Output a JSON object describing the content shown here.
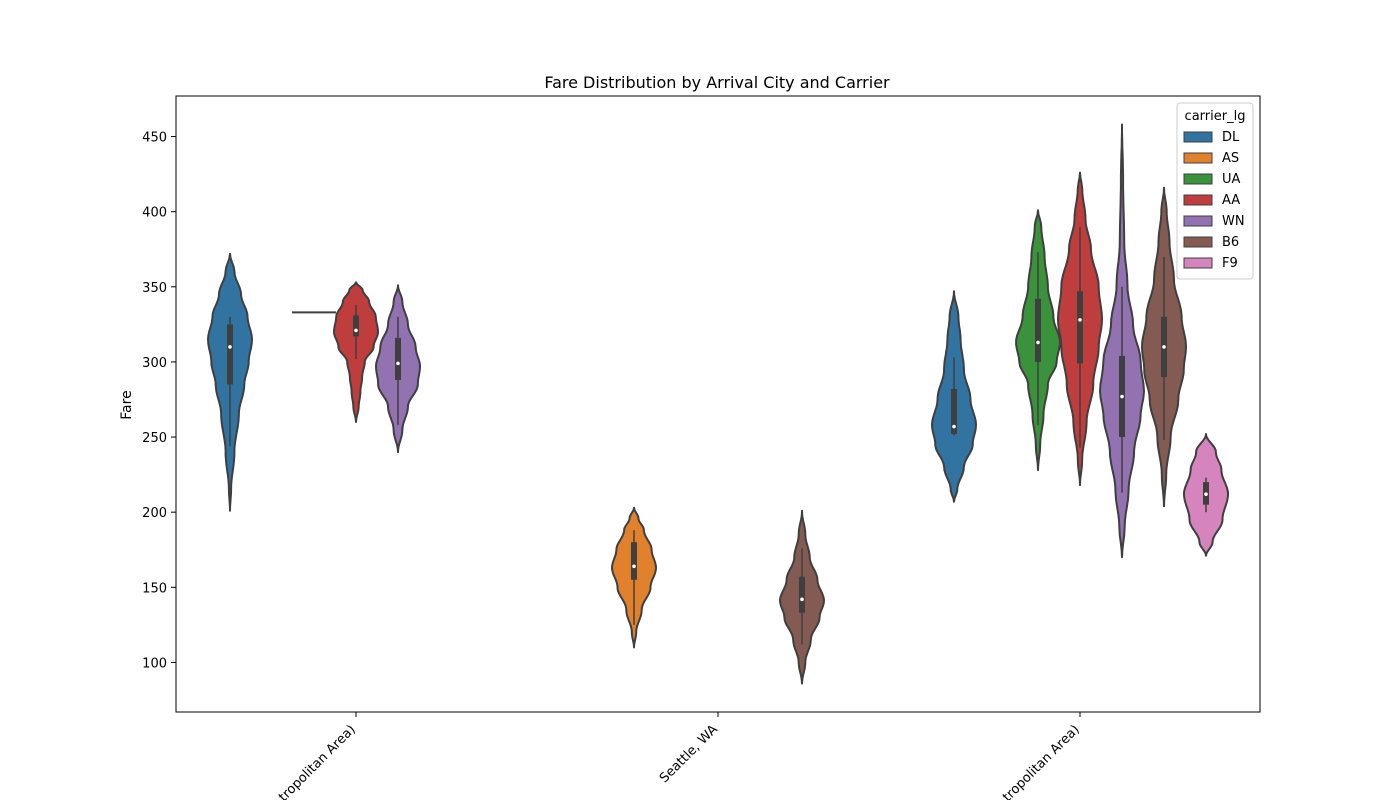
{
  "chart_data": {
    "type": "violin",
    "title": "Fare Distribution by Arrival City and Carrier",
    "xlabel": "",
    "ylabel": "Fare",
    "ylim": [
      67,
      477
    ],
    "yticks": [
      100,
      150,
      200,
      250,
      300,
      350,
      400,
      450
    ],
    "categories": [
      "tropolitan Area)",
      "Seattle, WA",
      "tropolitan Area)"
    ],
    "legend": {
      "title": "carrier_lg",
      "placement": "top-right",
      "entries": [
        "DL",
        "AS",
        "UA",
        "AA",
        "WN",
        "B6",
        "F9"
      ]
    },
    "colors": {
      "DL": "#3274a1",
      "AS": "#e1812c",
      "UA": "#3a923a",
      "AA": "#c03d3e",
      "WN": "#9372b2",
      "B6": "#845b53",
      "F9": "#d684bd"
    },
    "violins": [
      {
        "category": 0,
        "carrier": "DL",
        "min": 201,
        "max": 372,
        "q1": 285,
        "median": 310,
        "q3": 325,
        "whisker_low": 244,
        "whisker_high": 330,
        "profile": [
          [
            201,
            0.0
          ],
          [
            215,
            0.05
          ],
          [
            240,
            0.2
          ],
          [
            265,
            0.4
          ],
          [
            285,
            0.65
          ],
          [
            300,
            0.85
          ],
          [
            315,
            1.0
          ],
          [
            330,
            0.8
          ],
          [
            345,
            0.5
          ],
          [
            360,
            0.2
          ],
          [
            372,
            0.0
          ]
        ]
      },
      {
        "category": 0,
        "carrier": "UA",
        "min": 333,
        "max": 333,
        "median": 333,
        "degenerate": true
      },
      {
        "category": 0,
        "carrier": "AA",
        "min": 260,
        "max": 353,
        "q1": 317,
        "median": 321,
        "q3": 331,
        "whisker_low": 302,
        "whisker_high": 338,
        "profile": [
          [
            260,
            0.0
          ],
          [
            270,
            0.12
          ],
          [
            280,
            0.2
          ],
          [
            290,
            0.28
          ],
          [
            300,
            0.4
          ],
          [
            310,
            0.8
          ],
          [
            320,
            1.0
          ],
          [
            330,
            0.9
          ],
          [
            340,
            0.6
          ],
          [
            348,
            0.3
          ],
          [
            353,
            0.0
          ]
        ]
      },
      {
        "category": 0,
        "carrier": "WN",
        "min": 240,
        "max": 351,
        "q1": 288,
        "median": 299,
        "q3": 316,
        "whisker_low": 258,
        "whisker_high": 330,
        "profile": [
          [
            240,
            0.0
          ],
          [
            255,
            0.2
          ],
          [
            270,
            0.45
          ],
          [
            285,
            0.9
          ],
          [
            297,
            1.0
          ],
          [
            310,
            0.8
          ],
          [
            325,
            0.45
          ],
          [
            340,
            0.2
          ],
          [
            351,
            0.0
          ]
        ]
      },
      {
        "category": 1,
        "carrier": "AS",
        "min": 110,
        "max": 203,
        "q1": 155,
        "median": 164,
        "q3": 180,
        "whisker_low": 125,
        "whisker_high": 188,
        "profile": [
          [
            110,
            0.0
          ],
          [
            120,
            0.1
          ],
          [
            135,
            0.35
          ],
          [
            150,
            0.75
          ],
          [
            163,
            1.0
          ],
          [
            175,
            0.8
          ],
          [
            188,
            0.45
          ],
          [
            196,
            0.2
          ],
          [
            203,
            0.0
          ]
        ]
      },
      {
        "category": 1,
        "carrier": "B6",
        "min": 86,
        "max": 201,
        "q1": 133,
        "median": 142,
        "q3": 157,
        "whisker_low": 112,
        "whisker_high": 176,
        "profile": [
          [
            86,
            0.0
          ],
          [
            100,
            0.15
          ],
          [
            115,
            0.4
          ],
          [
            130,
            0.8
          ],
          [
            141,
            1.0
          ],
          [
            155,
            0.7
          ],
          [
            170,
            0.35
          ],
          [
            185,
            0.15
          ],
          [
            201,
            0.0
          ]
        ]
      },
      {
        "category": 2,
        "carrier": "DL",
        "min": 207,
        "max": 347,
        "q1": 252,
        "median": 257,
        "q3": 282,
        "whisker_low": 251,
        "whisker_high": 303,
        "profile": [
          [
            207,
            0.0
          ],
          [
            215,
            0.15
          ],
          [
            230,
            0.45
          ],
          [
            245,
            0.85
          ],
          [
            258,
            1.0
          ],
          [
            275,
            0.75
          ],
          [
            295,
            0.45
          ],
          [
            315,
            0.3
          ],
          [
            330,
            0.2
          ],
          [
            347,
            0.0
          ]
        ]
      },
      {
        "category": 2,
        "carrier": "UA",
        "min": 228,
        "max": 401,
        "q1": 300,
        "median": 313,
        "q3": 342,
        "whisker_low": 258,
        "whisker_high": 373,
        "profile": [
          [
            228,
            0.0
          ],
          [
            245,
            0.1
          ],
          [
            265,
            0.25
          ],
          [
            285,
            0.45
          ],
          [
            300,
            0.85
          ],
          [
            313,
            1.0
          ],
          [
            330,
            0.7
          ],
          [
            350,
            0.45
          ],
          [
            370,
            0.3
          ],
          [
            390,
            0.15
          ],
          [
            401,
            0.0
          ]
        ]
      },
      {
        "category": 2,
        "carrier": "AA",
        "min": 218,
        "max": 426,
        "q1": 299,
        "median": 328,
        "q3": 347,
        "whisker_low": 243,
        "whisker_high": 390,
        "profile": [
          [
            218,
            0.0
          ],
          [
            235,
            0.1
          ],
          [
            260,
            0.3
          ],
          [
            285,
            0.6
          ],
          [
            310,
            0.85
          ],
          [
            328,
            1.0
          ],
          [
            350,
            0.85
          ],
          [
            375,
            0.5
          ],
          [
            395,
            0.25
          ],
          [
            415,
            0.1
          ],
          [
            426,
            0.0
          ]
        ]
      },
      {
        "category": 2,
        "carrier": "WN",
        "min": 170,
        "max": 458,
        "q1": 250,
        "median": 277,
        "q3": 304,
        "whisker_low": 213,
        "whisker_high": 350,
        "profile": [
          [
            170,
            0.0
          ],
          [
            190,
            0.12
          ],
          [
            215,
            0.3
          ],
          [
            240,
            0.55
          ],
          [
            265,
            0.85
          ],
          [
            280,
            1.0
          ],
          [
            300,
            0.85
          ],
          [
            325,
            0.5
          ],
          [
            350,
            0.25
          ],
          [
            380,
            0.1
          ],
          [
            420,
            0.05
          ],
          [
            458,
            0.0
          ]
        ]
      },
      {
        "category": 2,
        "carrier": "B6",
        "min": 204,
        "max": 416,
        "q1": 290,
        "median": 310,
        "q3": 330,
        "whisker_low": 248,
        "whisker_high": 370,
        "profile": [
          [
            204,
            0.0
          ],
          [
            225,
            0.1
          ],
          [
            250,
            0.3
          ],
          [
            275,
            0.65
          ],
          [
            295,
            0.9
          ],
          [
            310,
            1.0
          ],
          [
            330,
            0.8
          ],
          [
            355,
            0.45
          ],
          [
            380,
            0.25
          ],
          [
            400,
            0.12
          ],
          [
            416,
            0.0
          ]
        ]
      },
      {
        "category": 2,
        "carrier": "F9",
        "min": 171,
        "max": 252,
        "q1": 205,
        "median": 212,
        "q3": 220,
        "whisker_low": 200,
        "whisker_high": 223,
        "profile": [
          [
            171,
            0.0
          ],
          [
            180,
            0.3
          ],
          [
            195,
            0.75
          ],
          [
            212,
            1.0
          ],
          [
            228,
            0.7
          ],
          [
            240,
            0.45
          ],
          [
            252,
            0.0
          ]
        ]
      }
    ]
  }
}
